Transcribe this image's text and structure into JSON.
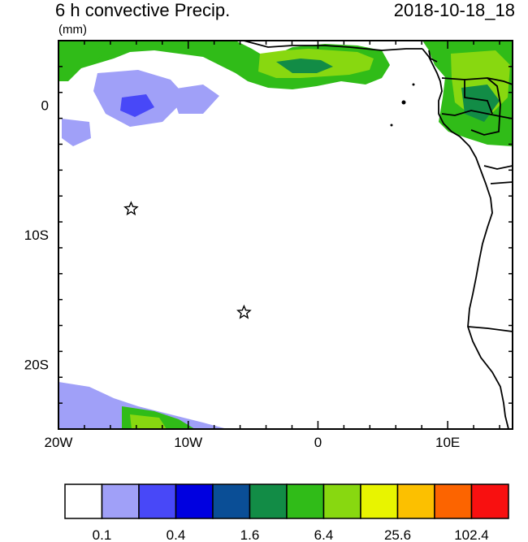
{
  "title": {
    "left": "6 h convective Precip.",
    "units": "(mm)",
    "right": "2018-10-18_18"
  },
  "axes": {
    "x_ticks": [
      {
        "label": "20W",
        "lon": -20
      },
      {
        "label": "10W",
        "lon": -10
      },
      {
        "label": "0",
        "lon": 0
      },
      {
        "label": "10E",
        "lon": 10
      }
    ],
    "y_ticks": [
      {
        "label": "0",
        "lat": 0
      },
      {
        "label": "10S",
        "lat": -10
      },
      {
        "label": "20S",
        "lat": -20
      }
    ],
    "lon_range": [
      -20,
      15
    ],
    "lat_range": [
      -25,
      5
    ]
  },
  "markers": [
    {
      "name": "star",
      "lon": -14.4,
      "lat": -8
    },
    {
      "name": "star",
      "lon": -5.7,
      "lat": -16
    }
  ],
  "colorbar": {
    "colors": [
      "#ffffff",
      "#a0a0f8",
      "#4848f8",
      "#0000e0",
      "#0a4e96",
      "#128c46",
      "#30bc18",
      "#88d810",
      "#e8f400",
      "#fcc000",
      "#fc6400",
      "#f81010"
    ],
    "labels": [
      "0.1",
      "0.4",
      "1.6",
      "6.4",
      "25.6",
      "102.4"
    ]
  }
}
